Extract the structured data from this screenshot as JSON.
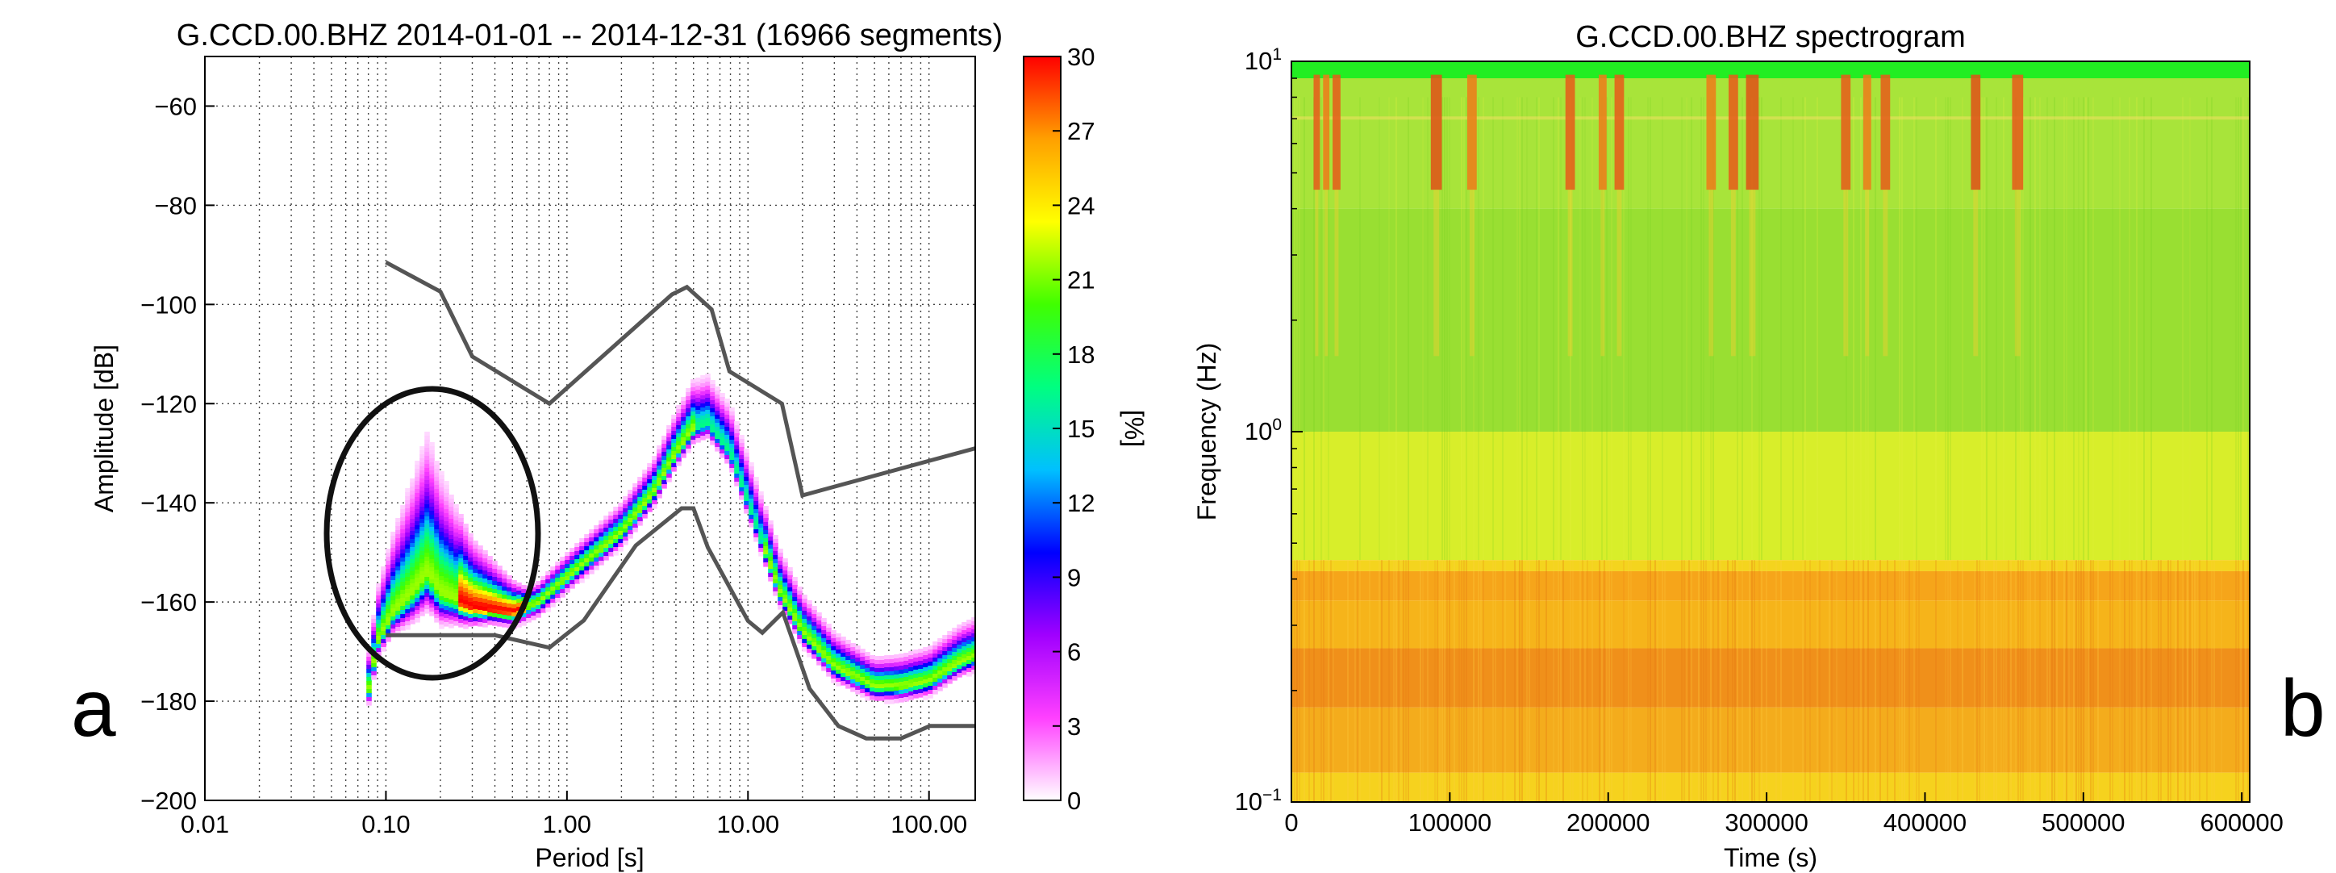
{
  "panel_letters": {
    "left": "a",
    "right": "b"
  },
  "chart_data": [
    {
      "type": "heatmap",
      "title": "G.CCD.00.BHZ   2014-01-01 -- 2014-12-31  (16966 segments)",
      "xlabel": "Period [s]",
      "ylabel": "Amplitude [dB]",
      "x_scale": "log",
      "xlim": [
        0.01,
        180
      ],
      "ylim": [
        -200,
        -50
      ],
      "x_ticks": [
        {
          "v": 0.01,
          "label": "0.01"
        },
        {
          "v": 0.1,
          "label": "0.10"
        },
        {
          "v": 1,
          "label": "1.00"
        },
        {
          "v": 10,
          "label": "10.00"
        },
        {
          "v": 100,
          "label": "100.00"
        }
      ],
      "y_ticks": [
        {
          "v": -60,
          "label": "−60"
        },
        {
          "v": -80,
          "label": "−80"
        },
        {
          "v": -100,
          "label": "−100"
        },
        {
          "v": -120,
          "label": "−120"
        },
        {
          "v": -140,
          "label": "−140"
        },
        {
          "v": -160,
          "label": "−160"
        },
        {
          "v": -180,
          "label": "−180"
        },
        {
          "v": -200,
          "label": "−200"
        }
      ],
      "grid": true,
      "colorbar": {
        "label": "[%]",
        "range": [
          0,
          30
        ],
        "ticks": [
          "0",
          "3",
          "6",
          "9",
          "12",
          "15",
          "18",
          "21",
          "24",
          "27",
          "30"
        ],
        "tick_values": [
          0,
          3,
          6,
          9,
          12,
          15,
          18,
          21,
          24,
          27,
          30
        ],
        "colors": [
          "#ffffff",
          "#ff40ff",
          "#a000ff",
          "#0000ff",
          "#00c0ff",
          "#00ff80",
          "#40ff00",
          "#ffff00",
          "#ffa000",
          "#ff0000"
        ]
      },
      "noise_model_color": "#555555",
      "annotation_ellipse_color": "#111111",
      "new_high_noise_model": [
        [
          0.1,
          -91.5
        ],
        [
          0.2,
          -97.4
        ],
        [
          0.3,
          -110.5
        ],
        [
          0.8,
          -120
        ],
        [
          3.8,
          -98
        ],
        [
          4.6,
          -96.5
        ],
        [
          6.3,
          -101
        ],
        [
          7.9,
          -113.5
        ],
        [
          15.4,
          -120
        ],
        [
          20,
          -138.5
        ],
        [
          180,
          -129
        ]
      ],
      "new_low_noise_model": [
        [
          0.1,
          -166.7
        ],
        [
          0.17,
          -166.7
        ],
        [
          0.4,
          -166.7
        ],
        [
          0.8,
          -169.2
        ],
        [
          1.24,
          -163.7
        ],
        [
          2.4,
          -148.6
        ],
        [
          4.3,
          -141.1
        ],
        [
          5.0,
          -141.1
        ],
        [
          6.0,
          -149
        ],
        [
          10.0,
          -163.8
        ],
        [
          12.0,
          -166.2
        ],
        [
          15.6,
          -162.1
        ],
        [
          21.9,
          -177.5
        ],
        [
          31.6,
          -185
        ],
        [
          45,
          -187.5
        ],
        [
          70,
          -187.5
        ],
        [
          101,
          -185
        ],
        [
          180,
          -185
        ]
      ],
      "mode_curve": [
        [
          0.078,
          -190
        ],
        [
          0.08,
          -178
        ],
        [
          0.09,
          -168
        ],
        [
          0.11,
          -162
        ],
        [
          0.14,
          -158
        ],
        [
          0.17,
          -154
        ],
        [
          0.2,
          -158
        ],
        [
          0.3,
          -161
        ],
        [
          0.5,
          -162
        ],
        [
          0.7,
          -160
        ],
        [
          1.0,
          -155
        ],
        [
          2.0,
          -146
        ],
        [
          3.0,
          -138
        ],
        [
          4.0,
          -130
        ],
        [
          5.0,
          -125
        ],
        [
          6.0,
          -124
        ],
        [
          8.0,
          -130
        ],
        [
          10.0,
          -140
        ],
        [
          15.0,
          -158
        ],
        [
          20.0,
          -166
        ],
        [
          30.0,
          -173
        ],
        [
          50.0,
          -177
        ],
        [
          70.0,
          -177
        ],
        [
          100.0,
          -176
        ],
        [
          150.0,
          -172
        ],
        [
          180.0,
          -171
        ]
      ],
      "spread_db": [
        [
          0.08,
          8
        ],
        [
          0.17,
          28
        ],
        [
          0.3,
          14
        ],
        [
          0.6,
          4
        ],
        [
          1.0,
          5
        ],
        [
          3.0,
          7
        ],
        [
          5.0,
          10
        ],
        [
          10.0,
          10
        ],
        [
          20.0,
          8
        ],
        [
          50.0,
          6
        ],
        [
          180.0,
          8
        ]
      ]
    },
    {
      "type": "heatmap",
      "title": "G.CCD.00.BHZ spectrogram",
      "xlabel": "Time (s)",
      "ylabel": "Frequency (Hz)",
      "y_scale": "log",
      "xlim": [
        0,
        605000
      ],
      "ylim": [
        0.1,
        10
      ],
      "x_ticks": [
        {
          "v": 0,
          "label": "0"
        },
        {
          "v": 100000,
          "label": "100000"
        },
        {
          "v": 200000,
          "label": "200000"
        },
        {
          "v": 300000,
          "label": "300000"
        },
        {
          "v": 400000,
          "label": "400000"
        },
        {
          "v": 500000,
          "label": "500000"
        },
        {
          "v": 600000,
          "label": "600000"
        }
      ],
      "y_ticks": [
        {
          "v": 0.1,
          "base": "10",
          "exp": "−1"
        },
        {
          "v": 1,
          "base": "10",
          "exp": "0"
        },
        {
          "v": 10,
          "base": "10",
          "exp": "1"
        }
      ],
      "bands": [
        {
          "f_lo": 9.0,
          "f_hi": 10.0,
          "color": "#22ee22"
        },
        {
          "f_lo": 4.0,
          "f_hi": 9.0,
          "color": "#a8e43a"
        },
        {
          "f_lo": 1.0,
          "f_hi": 4.0,
          "color": "#99df32"
        },
        {
          "f_lo": 0.45,
          "f_hi": 1.0,
          "color": "#d8ee2a"
        },
        {
          "f_lo": 0.42,
          "f_hi": 0.45,
          "color": "#f4d41e"
        },
        {
          "f_lo": 0.35,
          "f_hi": 0.42,
          "color": "#f6a51a"
        },
        {
          "f_lo": 0.26,
          "f_hi": 0.35,
          "color": "#f6b41a"
        },
        {
          "f_lo": 0.18,
          "f_hi": 0.26,
          "color": "#f0901a"
        },
        {
          "f_lo": 0.12,
          "f_hi": 0.18,
          "color": "#f4ac1c"
        },
        {
          "f_lo": 0.1,
          "f_hi": 0.12,
          "color": "#f6d21e"
        }
      ],
      "bursts": [
        {
          "t0": 14000,
          "t1": 18000,
          "color": "#e85a1a"
        },
        {
          "t0": 20000,
          "t1": 24000,
          "color": "#ee7a1a"
        },
        {
          "t0": 26000,
          "t1": 31000,
          "color": "#e85a1a"
        },
        {
          "t0": 88000,
          "t1": 95000,
          "color": "#e05018"
        },
        {
          "t0": 111000,
          "t1": 117000,
          "color": "#ee7a1a"
        },
        {
          "t0": 173000,
          "t1": 179000,
          "color": "#e85a1a"
        },
        {
          "t0": 194000,
          "t1": 199000,
          "color": "#ee7a1a"
        },
        {
          "t0": 204000,
          "t1": 210000,
          "color": "#e85a1a"
        },
        {
          "t0": 262000,
          "t1": 268000,
          "color": "#ee7a1a"
        },
        {
          "t0": 276000,
          "t1": 282000,
          "color": "#e85a1a"
        },
        {
          "t0": 287000,
          "t1": 295000,
          "color": "#e05018"
        },
        {
          "t0": 347000,
          "t1": 353000,
          "color": "#e85a1a"
        },
        {
          "t0": 361000,
          "t1": 366000,
          "color": "#ee7a1a"
        },
        {
          "t0": 372000,
          "t1": 378000,
          "color": "#e85a1a"
        },
        {
          "t0": 429000,
          "t1": 435000,
          "color": "#e05018"
        },
        {
          "t0": 455000,
          "t1": 462000,
          "color": "#e85a1a"
        }
      ]
    }
  ]
}
